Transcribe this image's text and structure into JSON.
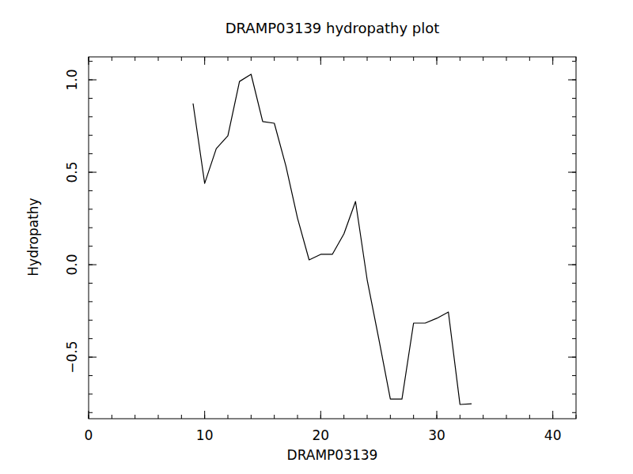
{
  "chart_data": {
    "type": "line",
    "title": "DRAMP03139 hydropathy plot",
    "x_label": "DRAMP03139",
    "y_label": "Hydropathy",
    "x": [
      9,
      10,
      11,
      12,
      13,
      14,
      15,
      16,
      17,
      18,
      19,
      20,
      21,
      22,
      23,
      24,
      25,
      26,
      27,
      28,
      29,
      30,
      31,
      32,
      33
    ],
    "values": [
      0.872,
      0.44,
      0.628,
      0.697,
      0.991,
      1.03,
      0.774,
      0.765,
      0.534,
      0.252,
      0.026,
      0.056,
      0.056,
      0.167,
      0.342,
      -0.081,
      -0.4,
      -0.727,
      -0.727,
      -0.316,
      -0.316,
      -0.29,
      -0.256,
      -0.756,
      -0.752
    ],
    "color": "#000000",
    "xlim": [
      0,
      42
    ],
    "ylim": [
      -0.833,
      1.124
    ],
    "xticks": [
      0,
      10,
      20,
      30,
      40
    ],
    "yticks": [
      {
        "value": -0.5,
        "label": "−0.5"
      },
      {
        "value": 0,
        "label": "0.0"
      },
      {
        "value": 0.5,
        "label": "0.5"
      },
      {
        "value": 1,
        "label": "1.0"
      }
    ],
    "grid": false
  }
}
